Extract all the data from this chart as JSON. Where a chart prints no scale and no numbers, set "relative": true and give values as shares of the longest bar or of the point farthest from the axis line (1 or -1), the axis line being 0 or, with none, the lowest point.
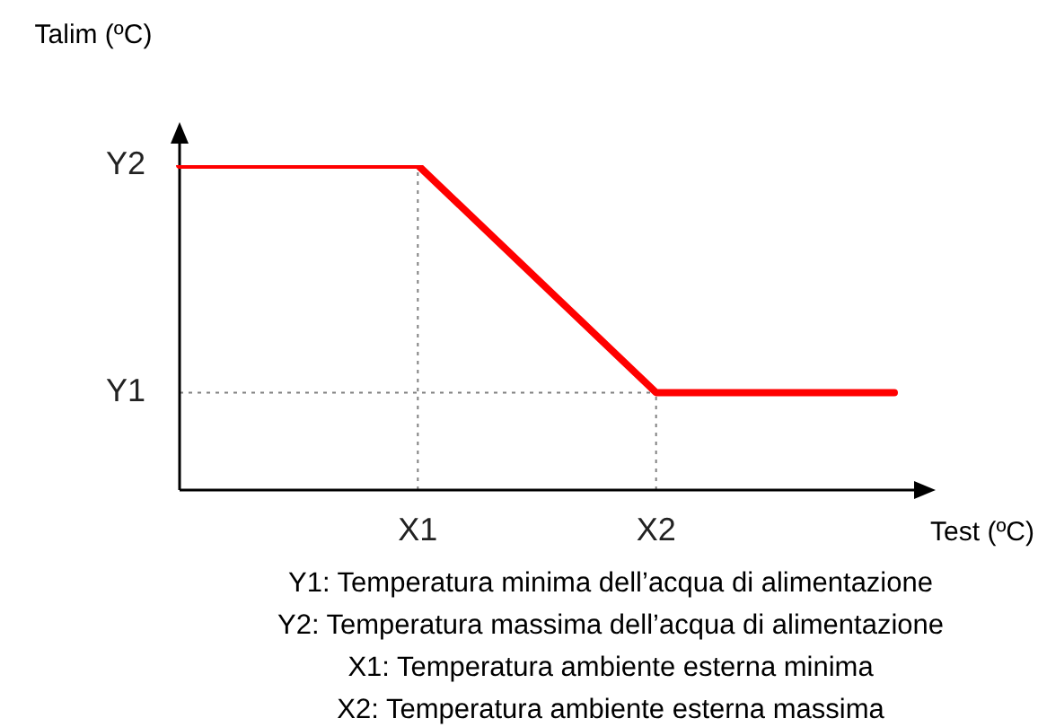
{
  "chart_data": {
    "type": "line",
    "relative": true,
    "ylabel": "Talim (ºC)",
    "xlabel": "Test (ºC)",
    "categories": [
      null,
      "X1",
      "X2",
      null
    ],
    "series": [
      {
        "color": "#ff0000",
        "values": [
          1,
          1,
          0.3,
          0.3
        ]
      }
    ],
    "ref_lines": [
      {
        "axis": "x",
        "value": "X1",
        "color": "#808080",
        "line_style": "dotted"
      },
      {
        "axis": "x",
        "value": "X2",
        "color": "#808080",
        "line_style": "dotted"
      },
      {
        "axis": "y",
        "value": 0.3,
        "label": "Y1",
        "color": "#808080",
        "line_style": "dotted"
      }
    ],
    "grid": false,
    "legend": false,
    "marker": "none",
    "line_style": "solid",
    "annotations": [
      "Y2",
      "Y1: Temperatura minima dell’acqua di alimentazione",
      "Y2: Temperatura massima dell’acqua di alimentazione",
      "X1: Temperatura ambiente esterna minima",
      "X2: Temperatura ambiente esterna massima"
    ]
  }
}
